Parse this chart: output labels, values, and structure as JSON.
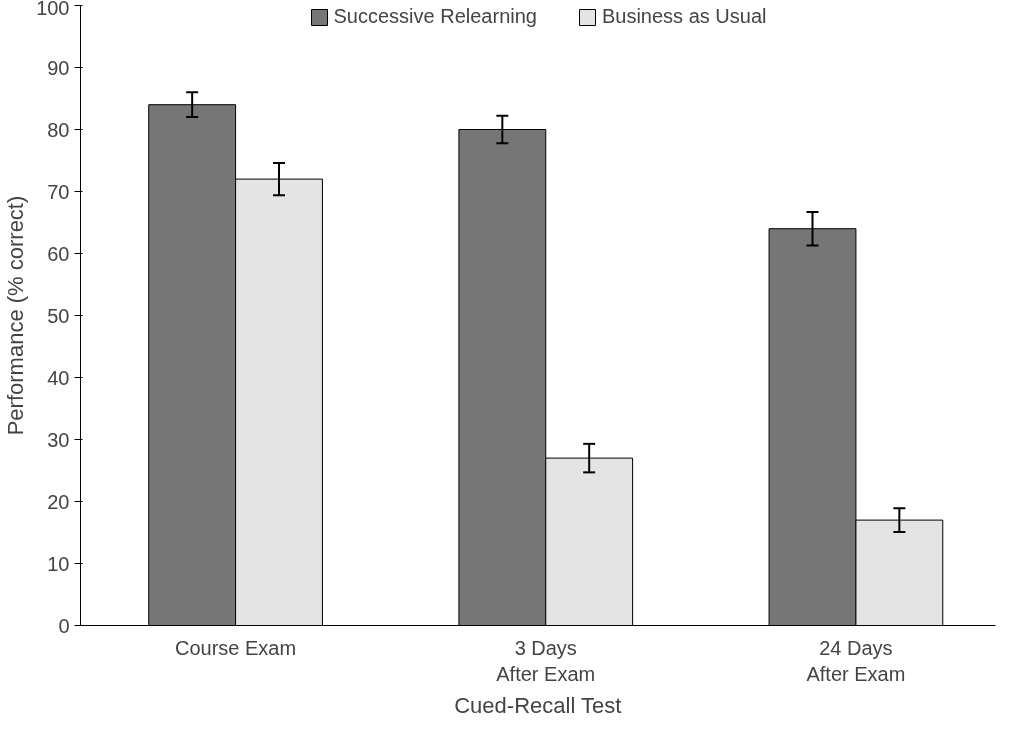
{
  "chart_data": {
    "type": "bar",
    "xlabel": "Cued-Recall Test",
    "ylabel": "Performance (% correct)",
    "categories": [
      "Course Exam",
      "3 Days\nAfter Exam",
      "24 Days\nAfter Exam"
    ],
    "series": [
      {
        "name": "Successive Relearning",
        "color": "#767676",
        "values": [
          84,
          80,
          64
        ],
        "errors": [
          2,
          2.2,
          2.7
        ]
      },
      {
        "name": "Business as Usual",
        "color": "#e4e4e4",
        "values": [
          72,
          27,
          17
        ],
        "errors": [
          2.6,
          2.3,
          1.9
        ]
      }
    ],
    "ylim": [
      0,
      100
    ],
    "yticks": [
      0,
      10,
      20,
      30,
      40,
      50,
      60,
      70,
      80,
      90,
      100
    ],
    "grid": false,
    "legend": "top"
  }
}
